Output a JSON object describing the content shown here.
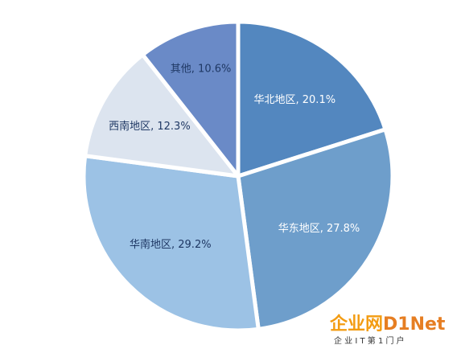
{
  "chart_data": {
    "type": "pie",
    "title": "",
    "slices": [
      {
        "label": "华北地区",
        "value": 20.1,
        "display": "华北地区, 20.1%",
        "color": "#5387BF",
        "text_color": "#ffffff"
      },
      {
        "label": "华东地区",
        "value": 27.8,
        "display": "华东地区, 27.8%",
        "color": "#6E9ECB",
        "text_color": "#ffffff"
      },
      {
        "label": "华南地区",
        "value": 29.2,
        "display": "华南地区, 29.2%",
        "color": "#9CC2E5",
        "text_color": "#1F3864"
      },
      {
        "label": "西南地区",
        "value": 12.3,
        "display": "西南地区, 12.3%",
        "color": "#DCE4EF",
        "text_color": "#1F3864"
      },
      {
        "label": "其他",
        "value": 10.6,
        "display": "其他, 10.6%",
        "color": "#6A8AC7",
        "text_color": "#1F3864"
      }
    ],
    "start": "12 o'clock",
    "direction": "clockwise",
    "legend": "none"
  },
  "watermark": {
    "brand_part1": "企业网",
    "brand_part2": "D1Net",
    "tagline": "企 业 I T 第 1 门 户",
    "brand_color": "#F39C12",
    "brand_color2": "#E67E22",
    "tagline_color": "#333333"
  }
}
